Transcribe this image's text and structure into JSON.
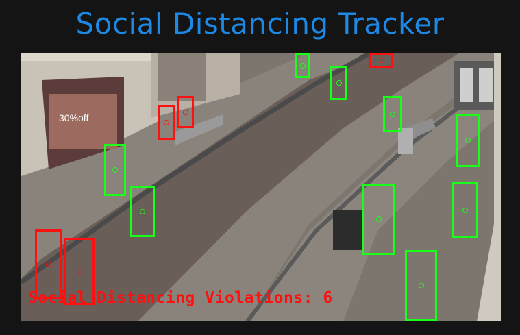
{
  "header": {
    "title": "Social Distancing Tracker"
  },
  "video": {
    "violation_text": "Social Distancing Violations: 6",
    "violations_count": 6,
    "colors": {
      "safe": "#1aff1a",
      "violation": "#ff1010"
    },
    "detections": [
      {
        "status": "safe"
      },
      {
        "status": "safe"
      },
      {
        "status": "safe"
      },
      {
        "status": "safe"
      },
      {
        "status": "safe"
      },
      {
        "status": "safe"
      },
      {
        "status": "safe"
      },
      {
        "status": "safe"
      },
      {
        "status": "safe"
      },
      {
        "status": "safe"
      },
      {
        "status": "violation"
      },
      {
        "status": "violation"
      },
      {
        "status": "violation"
      },
      {
        "status": "violation"
      },
      {
        "status": "violation"
      },
      {
        "status": "violation"
      }
    ]
  }
}
